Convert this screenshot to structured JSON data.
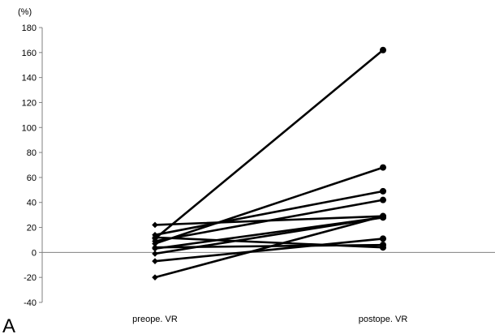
{
  "panel_label": "A",
  "chart_data": {
    "type": "line",
    "title": "",
    "xlabel": "",
    "ylabel": "",
    "unit_label": "(%)",
    "categories": [
      "preope. VR",
      "postope. VR"
    ],
    "ylim": [
      -40,
      180
    ],
    "yticks": [
      -40,
      -20,
      0,
      20,
      40,
      60,
      80,
      100,
      120,
      140,
      160,
      180
    ],
    "grid": false,
    "legend": "none",
    "colors": {
      "line": "#000000",
      "axis": "#808080",
      "marker_pre": "#000000",
      "marker_post": "#000000"
    },
    "series": [
      {
        "values": [
          11,
          162
        ]
      },
      {
        "values": [
          7,
          68
        ]
      },
      {
        "values": [
          14,
          49
        ]
      },
      {
        "values": [
          9,
          42
        ]
      },
      {
        "values": [
          22,
          29
        ]
      },
      {
        "values": [
          3,
          28
        ]
      },
      {
        "values": [
          -1,
          28
        ]
      },
      {
        "values": [
          -20,
          29
        ]
      },
      {
        "values": [
          -7,
          11
        ]
      },
      {
        "values": [
          12,
          4
        ]
      },
      {
        "values": [
          4,
          6
        ]
      }
    ]
  }
}
